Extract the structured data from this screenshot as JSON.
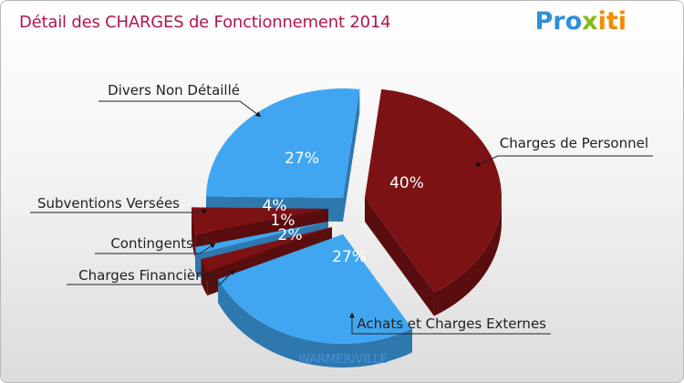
{
  "header": {
    "title": "Détail des CHARGES de Fonctionnement 2014",
    "logo_text": "Proxiti"
  },
  "commune": "WARMERIVILLE",
  "colors": {
    "title": "#b0164f",
    "slice_blue": "#41a6f1",
    "slice_red": "#7d1214",
    "commune": "#4a90d9"
  },
  "chart_data": {
    "type": "pie",
    "title": "Détail des CHARGES de Fonctionnement 2014",
    "three_d": true,
    "exploded": true,
    "slices": [
      {
        "label": "Charges de Personnel",
        "percent_label": "40%",
        "value": 40,
        "color": "#7d1214"
      },
      {
        "label": "Achats et Charges Externes",
        "percent_label": "27%",
        "value": 27,
        "color": "#41a6f1"
      },
      {
        "label": "Charges Financières",
        "percent_label": "2%",
        "value": 2,
        "color": "#7d1214"
      },
      {
        "label": "Contingents",
        "percent_label": "1%",
        "value": 1,
        "color": "#41a6f1"
      },
      {
        "label": "Subventions Versées",
        "percent_label": "4%",
        "value": 4,
        "color": "#7d1214"
      },
      {
        "label": "Divers Non Détaillé",
        "percent_label": "27%",
        "value": 27,
        "color": "#41a6f1"
      }
    ]
  }
}
